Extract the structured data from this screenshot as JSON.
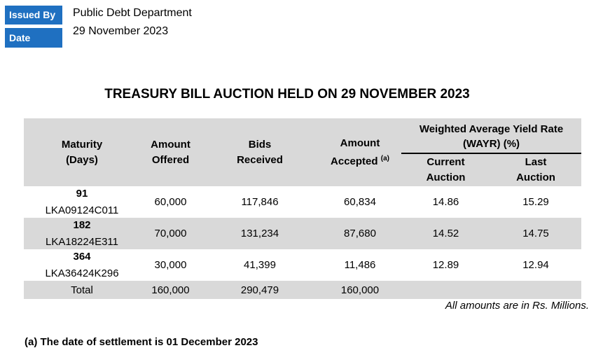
{
  "meta": {
    "issued_by_label": "Issued By",
    "issued_by_value": "Public Debt Department",
    "date_label": "Date",
    "date_value": "29 November 2023"
  },
  "title": "TREASURY BILL AUCTION HELD ON 29 NOVEMBER 2023",
  "table": {
    "headers": {
      "maturity_line1": "Maturity",
      "maturity_line2": "(Days)",
      "offered_line1": "Amount",
      "offered_line2": "Offered",
      "bids_line1": "Bids",
      "bids_line2": "Received",
      "accepted_line1": "Amount",
      "accepted_line2": "Accepted",
      "accepted_sup": "(a)",
      "wayr_line1": "Weighted Average Yield Rate",
      "wayr_line2": "(WAYR) (%)",
      "current_line1": "Current",
      "current_line2": "Auction",
      "last_line1": "Last",
      "last_line2": "Auction"
    },
    "rows": [
      {
        "days": "91",
        "code": "LKA09124C011",
        "offered": "60,000",
        "bids": "117,846",
        "accepted": "60,834",
        "current": "14.86",
        "last": "15.29"
      },
      {
        "days": "182",
        "code": "LKA18224E311",
        "offered": "70,000",
        "bids": "131,234",
        "accepted": "87,680",
        "current": "14.52",
        "last": "14.75"
      },
      {
        "days": "364",
        "code": "LKA36424K296",
        "offered": "30,000",
        "bids": "41,399",
        "accepted": "11,486",
        "current": "12.89",
        "last": "12.94"
      }
    ],
    "total": {
      "label": "Total",
      "offered": "160,000",
      "bids": "290,479",
      "accepted": "160,000"
    }
  },
  "note_units": "All amounts are in Rs. Millions.",
  "footnote": "(a) The date of settlement is 01 December 2023",
  "colors": {
    "label_bg": "#1f70c1",
    "shade": "#d9d9d9"
  }
}
